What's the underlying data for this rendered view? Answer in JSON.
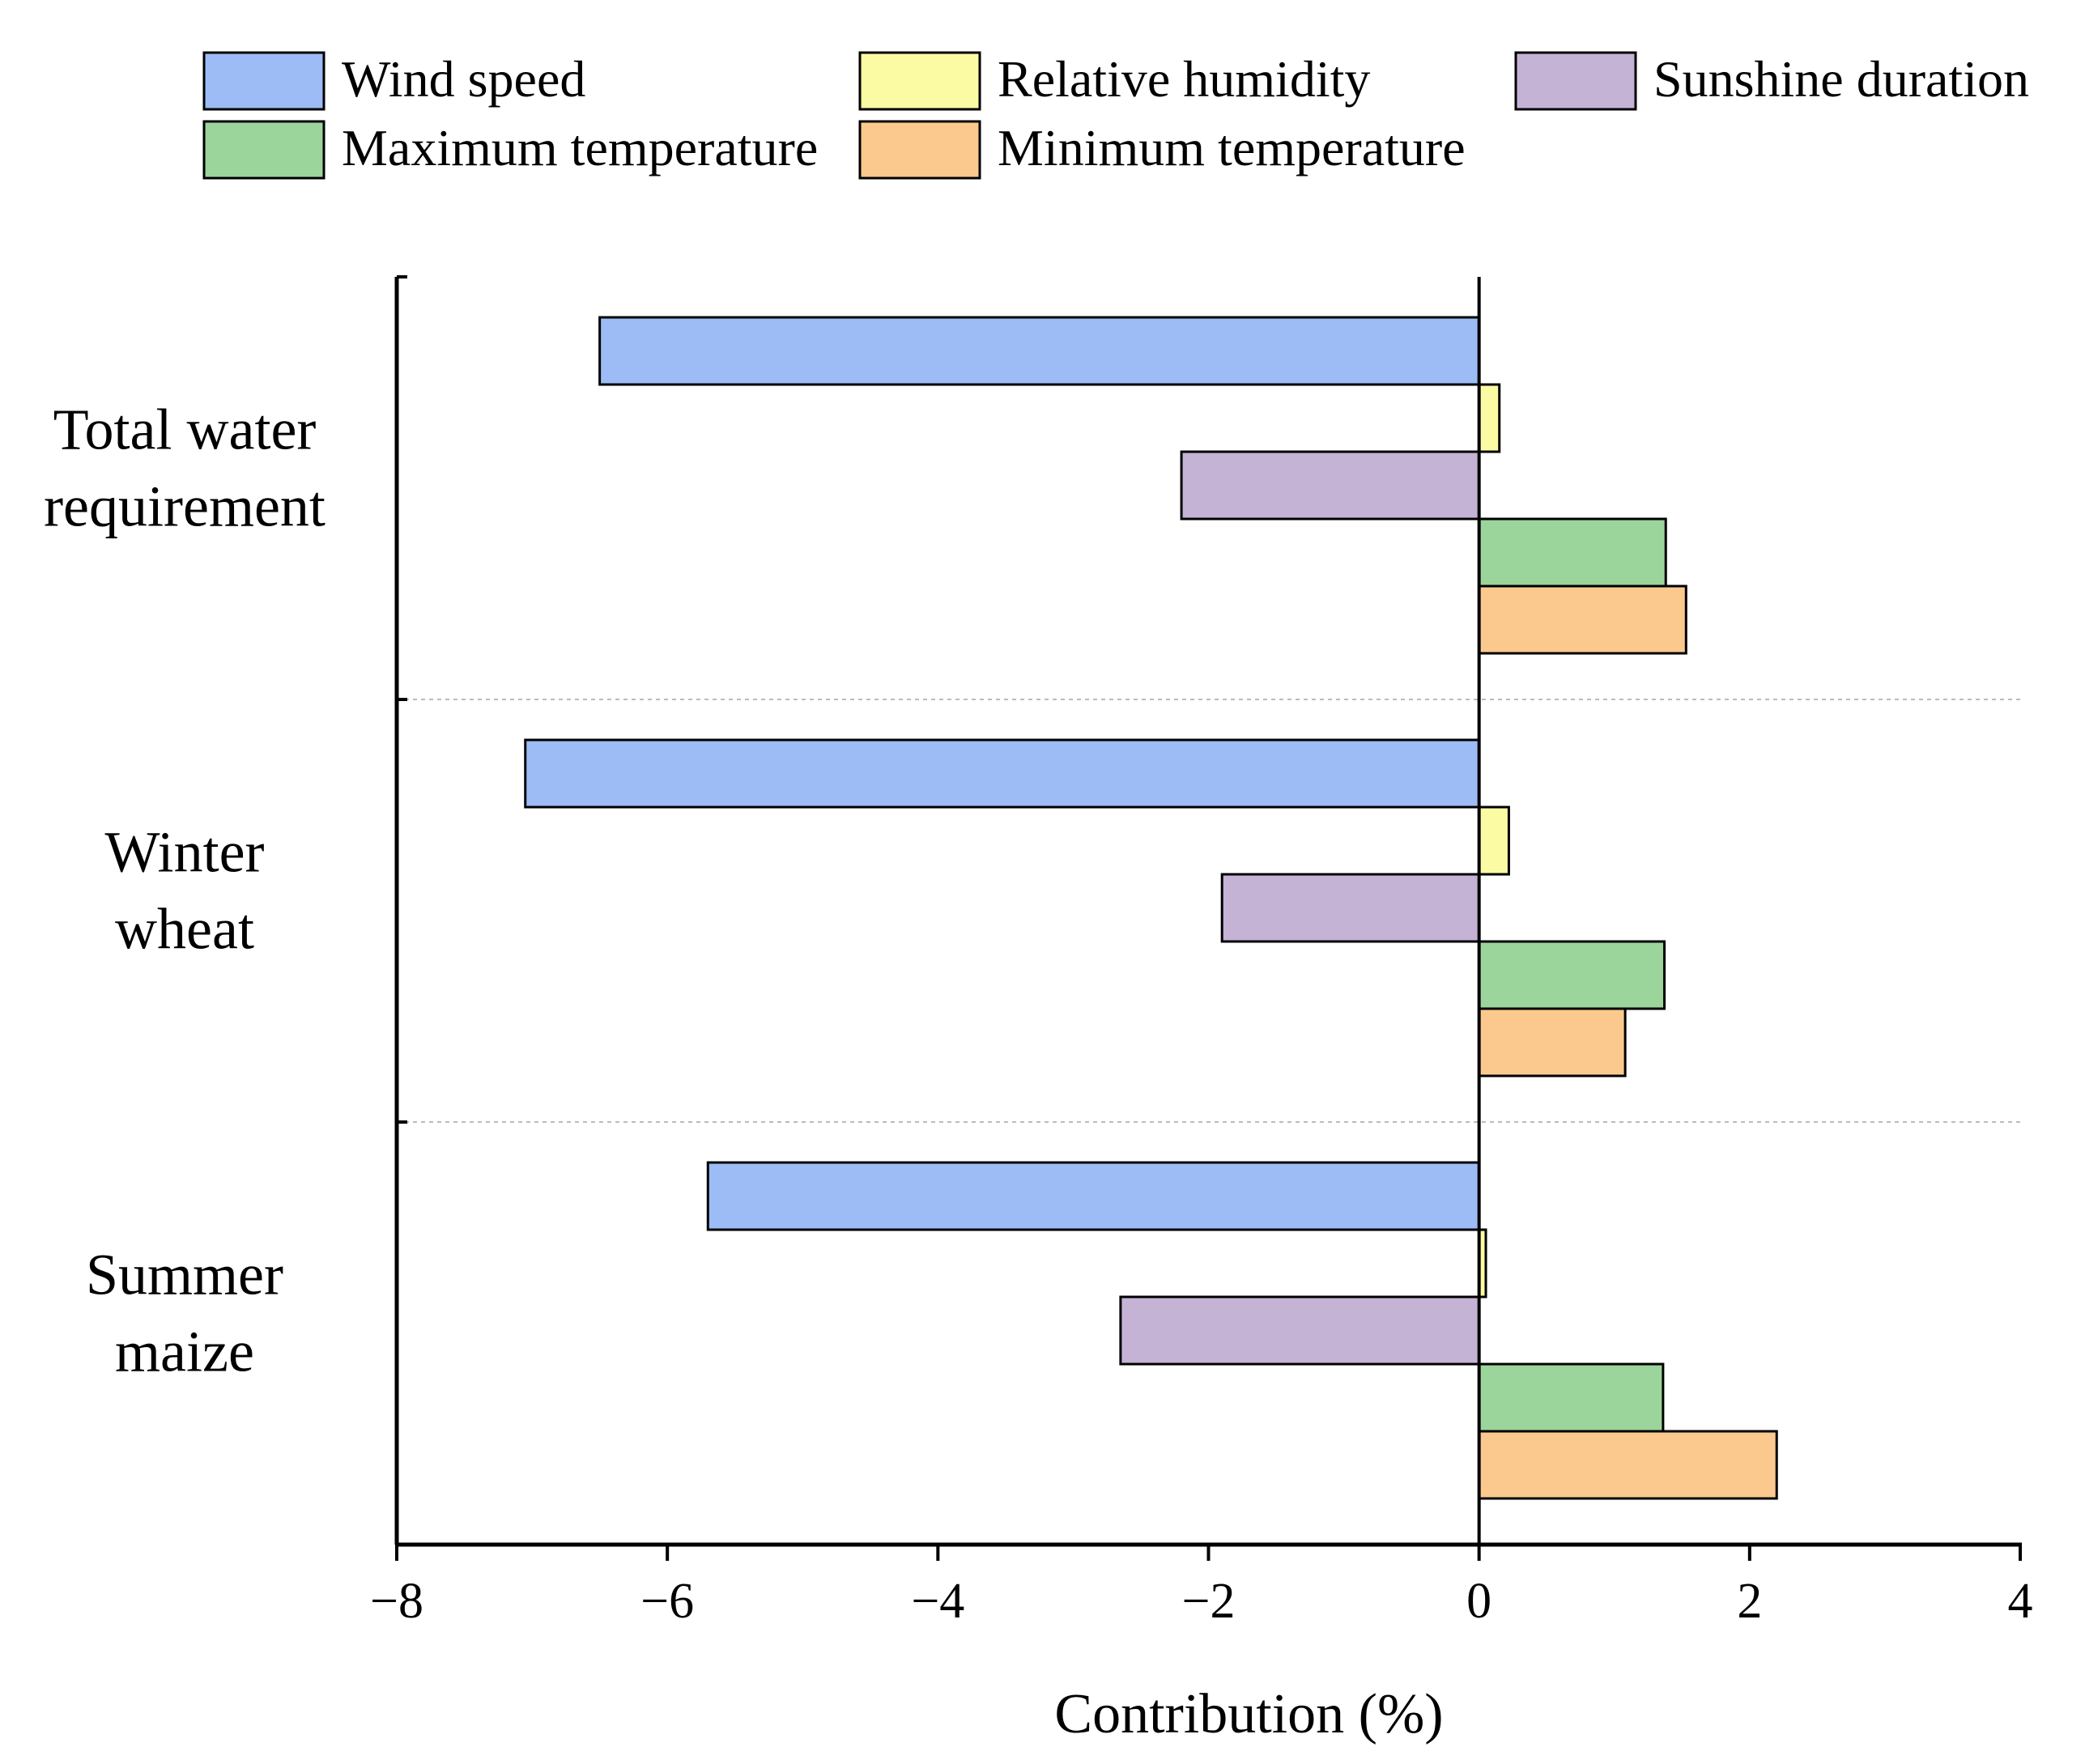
{
  "chart_data": {
    "type": "bar",
    "orientation": "horizontal",
    "title": "",
    "xlabel": "Contribution (%)",
    "ylabel": "",
    "xlim": [
      -8,
      4
    ],
    "xticks": [
      -8,
      -6,
      -4,
      -2,
      0,
      2,
      4
    ],
    "xtick_labels": [
      "−8",
      "−6",
      "−4",
      "−2",
      "0",
      "2",
      "4"
    ],
    "categories": [
      [
        "Total water",
        "requirement"
      ],
      [
        "Winter",
        "wheat"
      ],
      [
        "Summer",
        "maize"
      ]
    ],
    "series": [
      {
        "name": "Wind speed",
        "color": "#9dbbf5",
        "values": [
          -6.5,
          -7.05,
          -5.7
        ]
      },
      {
        "name": "Relative humidity",
        "color": "#fbfba3",
        "values": [
          0.15,
          0.22,
          0.05
        ]
      },
      {
        "name": "Sunshine duration",
        "color": "#c5b3d6",
        "values": [
          -2.2,
          -1.9,
          -2.65
        ]
      },
      {
        "name": "Maximum temperature",
        "color": "#9bd59b",
        "values": [
          1.38,
          1.37,
          1.36
        ]
      },
      {
        "name": "Minimum temperature",
        "color": "#fbc98e",
        "values": [
          1.53,
          1.08,
          2.2
        ]
      }
    ],
    "legend": {
      "placement": "top",
      "rows": [
        [
          "Wind speed",
          "Relative humidity",
          "Sunshine duration"
        ],
        [
          "Maximum temperature",
          "Minimum temperature"
        ]
      ]
    },
    "grid": "dotted separators between categories"
  }
}
